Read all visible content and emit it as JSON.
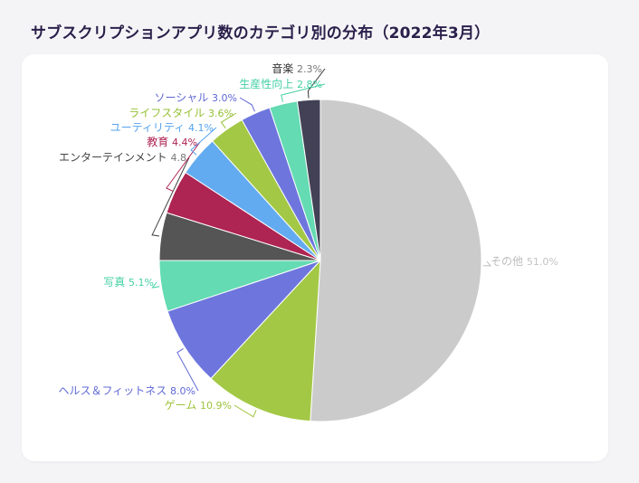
{
  "title": "サブスクリプションアプリ数のカテゴリ別の分布（2022年3月）",
  "chart_data": {
    "type": "pie",
    "start": "top",
    "direction": "clockwise",
    "slices": [
      {
        "label": "その他",
        "value_text": "51.0%",
        "value": 51.0,
        "color": "#cccbcb"
      },
      {
        "label": "ゲーム",
        "value_text": "10.9%",
        "value": 10.9,
        "color": "#a3c845"
      },
      {
        "label": "ヘルス＆フィットネス",
        "value_text": "8.0%",
        "value": 8.0,
        "color": "#6e76de"
      },
      {
        "label": "写真",
        "value_text": "5.1%",
        "value": 5.1,
        "color": "#64dbb2"
      },
      {
        "label": "エンターテインメント",
        "value_text": "4.8",
        "value": 4.8,
        "color": "#555555"
      },
      {
        "label": "教育",
        "value_text": "4.4%",
        "value": 4.4,
        "color": "#ae2452"
      },
      {
        "label": "ユーティリティ",
        "value_text": "4.1%",
        "value": 4.1,
        "color": "#63abf0"
      },
      {
        "label": "ライフスタイル",
        "value_text": "3.6%",
        "value": 3.6,
        "color": "#a3c845"
      },
      {
        "label": "ソーシャル",
        "value_text": "3.0%",
        "value": 3.0,
        "color": "#6e76de"
      },
      {
        "label": "生産性向上",
        "value_text": "2.8%",
        "value": 2.8,
        "color": "#64dbb2"
      },
      {
        "label": "音楽",
        "value_text": "2.3%",
        "value": 2.3,
        "color": "#434155"
      }
    ]
  }
}
